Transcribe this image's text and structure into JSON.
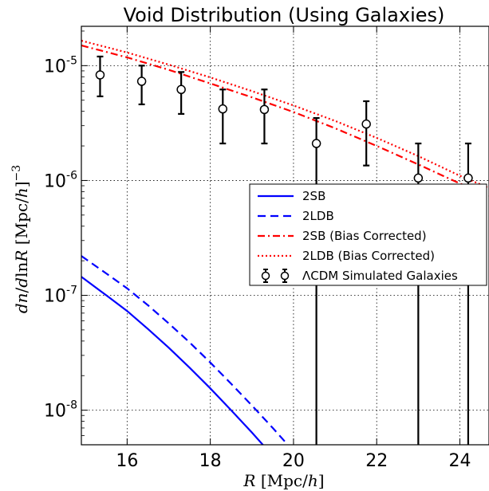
{
  "chart_data": {
    "type": "line",
    "title": "Void Distribution (Using Galaxies)",
    "xlabel": "R [Mpc/h]",
    "ylabel": "dn/dlnR [Mpc/h]^-3",
    "xlim": [
      14.9,
      24.7
    ],
    "ylim": [
      5e-09,
      2.2e-05
    ],
    "yscale": "log",
    "grid": true,
    "legend_position": "center-right",
    "x_ticks": [
      16,
      18,
      20,
      22,
      24
    ],
    "y_ticks": [
      {
        "value": 1e-08,
        "base": "10",
        "exp": "-8"
      },
      {
        "value": 1e-07,
        "base": "10",
        "exp": "-7"
      },
      {
        "value": 1e-06,
        "base": "10",
        "exp": "-6"
      },
      {
        "value": 1e-05,
        "base": "10",
        "exp": "-5"
      }
    ],
    "series": [
      {
        "name": "2SB",
        "style": "solid",
        "color": "#0000ff",
        "x": [
          14.9,
          15.5,
          16.0,
          16.5,
          17.0,
          17.5,
          18.0,
          18.5,
          19.0,
          19.5
        ],
        "y": [
          1.45e-07,
          1e-07,
          7.3e-08,
          5.1e-08,
          3.5e-08,
          2.35e-08,
          1.55e-08,
          1e-08,
          6.4e-09,
          4e-09
        ]
      },
      {
        "name": "2LDB",
        "style": "dashed",
        "color": "#0000ff",
        "x": [
          14.9,
          15.5,
          16.0,
          16.5,
          17.0,
          17.5,
          18.0,
          18.5,
          19.0,
          19.5,
          20.0
        ],
        "y": [
          2.2e-07,
          1.55e-07,
          1.15e-07,
          8.2e-08,
          5.7e-08,
          3.9e-08,
          2.6e-08,
          1.7e-08,
          1.1e-08,
          7e-09,
          4.4e-09
        ]
      },
      {
        "name": "2SB (Bias Corrected)",
        "style": "dashdot",
        "color": "#ff0000",
        "x": [
          14.9,
          16.0,
          17.0,
          18.0,
          19.0,
          20.0,
          21.0,
          22.0,
          23.0,
          24.0,
          24.7
        ],
        "y": [
          1.5e-05,
          1.18e-05,
          9.2e-06,
          7e-06,
          5.3e-06,
          3.95e-06,
          2.85e-06,
          2e-06,
          1.38e-06,
          9.4e-07,
          7.4e-07
        ]
      },
      {
        "name": "2LDB (Bias Corrected)",
        "style": "dotted",
        "color": "#ff0000",
        "x": [
          14.9,
          16.0,
          17.0,
          18.0,
          19.0,
          20.0,
          21.0,
          22.0,
          23.0,
          24.0,
          24.7
        ],
        "y": [
          1.65e-05,
          1.3e-05,
          1.02e-05,
          7.9e-06,
          6e-06,
          4.5e-06,
          3.3e-06,
          2.35e-06,
          1.63e-06,
          1.1e-06,
          8.6e-07
        ]
      }
    ],
    "points": {
      "name": "ΛCDM Simulated Galaxies",
      "color": "#000000",
      "x": [
        15.35,
        16.35,
        17.3,
        18.3,
        19.3,
        20.55,
        21.75,
        23.0,
        24.2
      ],
      "y": [
        8.3e-06,
        7.3e-06,
        6.2e-06,
        4.2e-06,
        4.15e-06,
        2.1e-06,
        3.1e-06,
        1.05e-06,
        1.05e-06
      ],
      "yerr_low": [
        5.4e-06,
        4.6e-06,
        3.8e-06,
        2.1e-06,
        2.1e-06,
        1e-09,
        1.35e-06,
        1e-09,
        1e-09
      ],
      "yerr_high": [
        1.2e-05,
        1e-05,
        8.8e-06,
        6.2e-06,
        6.2e-06,
        3.5e-06,
        4.9e-06,
        2.1e-06,
        2.1e-06
      ]
    }
  }
}
